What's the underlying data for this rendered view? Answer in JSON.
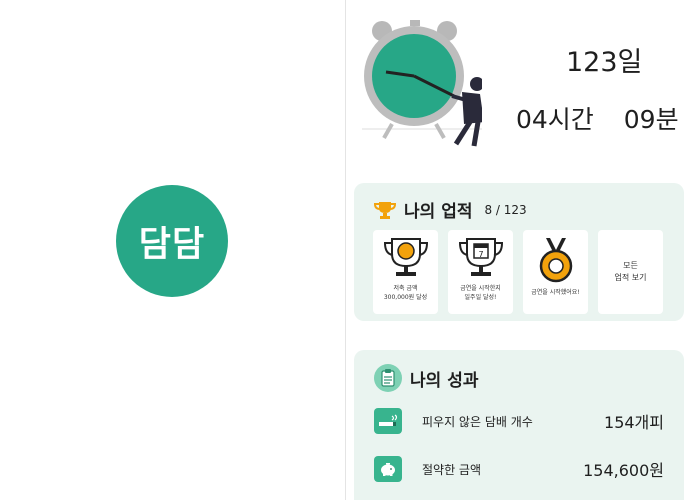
{
  "brand": {
    "logo_text": "담담",
    "color": "#27a787"
  },
  "timer": {
    "days": "123일",
    "hours": "04시간",
    "minutes": "09분"
  },
  "achievements": {
    "title": "나의 업적",
    "count": "8 / 123",
    "badges": [
      {
        "line1": "저축 금액",
        "line2": "300,000원 달성",
        "icon": "piggy-trophy-icon"
      },
      {
        "line1": "금연을 시작한지",
        "line2": "일주일 달성!",
        "icon": "calendar-trophy-icon"
      },
      {
        "line1": "금연을 시작했어요!",
        "line2": "",
        "icon": "medal-icon"
      }
    ],
    "view_all": {
      "line1": "모든",
      "line2": "업적 보기"
    }
  },
  "results": {
    "title": "나의 성과",
    "rows": [
      {
        "label": "피우지 않은 담배 개수",
        "value": "154개피",
        "icon": "cigarette-icon"
      },
      {
        "label": "절약한 금액",
        "value": "154,600원",
        "icon": "piggy-bank-icon"
      }
    ]
  },
  "colors": {
    "accent": "#38b48e",
    "card_bg": "#eaf4f0",
    "trophy": "#f2a20c"
  }
}
